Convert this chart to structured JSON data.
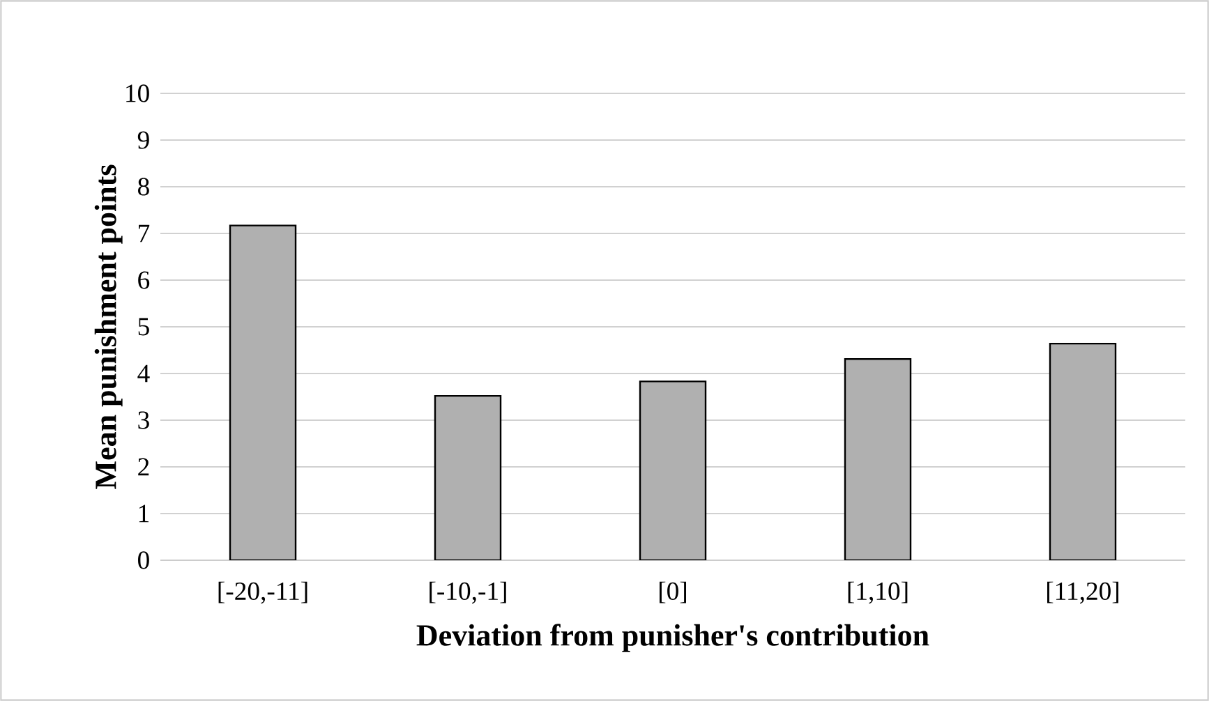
{
  "chart_data": {
    "type": "bar",
    "xlabel": "Deviation from punisher's contribution",
    "ylabel": "Mean punishment points",
    "categories": [
      "[-20,-11]",
      "[-10,-1]",
      "[0]",
      "[1,10]",
      "[11,20]"
    ],
    "values": [
      7.17,
      3.52,
      3.83,
      4.31,
      4.64
    ],
    "color": "#b0b0b0",
    "ylim": [
      0,
      10
    ],
    "yticks": [
      0,
      1,
      2,
      3,
      4,
      5,
      6,
      7,
      8,
      9,
      10
    ],
    "grid": "y"
  }
}
